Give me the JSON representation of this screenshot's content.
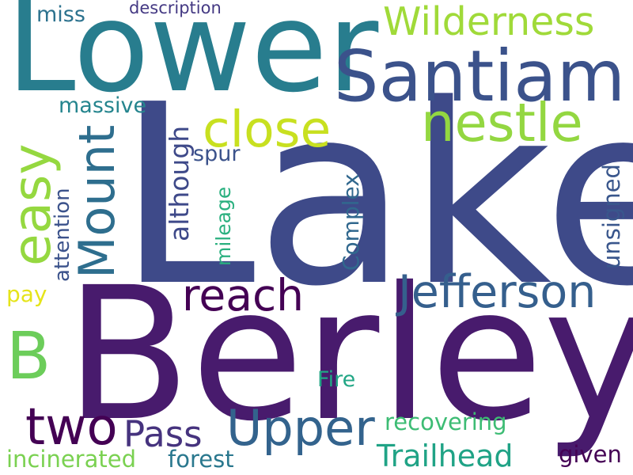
{
  "words": {
    "lake": {
      "text": "Lake",
      "color": "#3e4a89"
    },
    "berley": {
      "text": "Berley",
      "color": "#481b6d"
    },
    "lower": {
      "text": "Lower",
      "color": "#287d8e"
    },
    "santiam": {
      "text": "Santiam",
      "color": "#3b528b"
    },
    "wilderness": {
      "text": "Wilderness",
      "color": "#a0da39"
    },
    "close": {
      "text": "close",
      "color": "#c8e020"
    },
    "nestle": {
      "text": "nestle",
      "color": "#93d741"
    },
    "easy": {
      "text": "easy",
      "color": "#95d840"
    },
    "mount": {
      "text": "Mount",
      "color": "#2e6e8e"
    },
    "although": {
      "text": "although",
      "color": "#3e4989"
    },
    "massive": {
      "text": "massive",
      "color": "#25858e"
    },
    "miss": {
      "text": "miss",
      "color": "#2c728e"
    },
    "description": {
      "text": "description",
      "color": "#443983"
    },
    "spur": {
      "text": "spur",
      "color": "#3b528b"
    },
    "attention": {
      "text": "attention",
      "color": "#3b528b"
    },
    "mileage": {
      "text": "mileage",
      "color": "#2ab07f"
    },
    "complex": {
      "text": "Complex",
      "color": "#31688e"
    },
    "unsigned": {
      "text": "unsigned",
      "color": "#39568c"
    },
    "reach": {
      "text": "reach",
      "color": "#440154"
    },
    "jefferson": {
      "text": "Jefferson",
      "color": "#355f8d"
    },
    "b": {
      "text": "B",
      "color": "#6ccd5a"
    },
    "pay": {
      "text": "pay",
      "color": "#e5e419"
    },
    "two": {
      "text": "two",
      "color": "#440154"
    },
    "pass": {
      "text": "Pass",
      "color": "#46337e"
    },
    "upper": {
      "text": "Upper",
      "color": "#33638d"
    },
    "fire": {
      "text": "Fire",
      "color": "#21a685"
    },
    "recovering": {
      "text": "recovering",
      "color": "#3dbc74"
    },
    "trailhead": {
      "text": "Trailhead",
      "color": "#20a386"
    },
    "given": {
      "text": "given",
      "color": "#440154"
    },
    "incinerated": {
      "text": "incinerated",
      "color": "#7ad151"
    },
    "forest": {
      "text": "forest",
      "color": "#2a788e"
    }
  }
}
